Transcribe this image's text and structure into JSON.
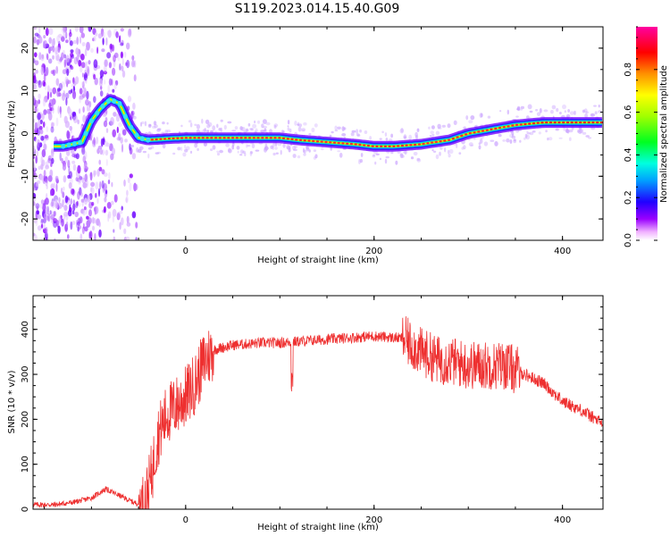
{
  "title": "S119.2023.014.15.40.G09",
  "chart_data": [
    {
      "type": "heatmap",
      "xlabel": "Height of straight line (km)",
      "ylabel": "Frequency (Hz)",
      "xlim": [
        -162,
        443
      ],
      "ylim": [
        -25,
        25
      ],
      "x_ticks": [
        0,
        200,
        400
      ],
      "y_ticks": [
        -20,
        -10,
        0,
        10,
        20
      ],
      "ridge": {
        "x": [
          -130,
          -110,
          -100,
          -90,
          -80,
          -70,
          -60,
          -50,
          -40,
          -20,
          0,
          50,
          100,
          120,
          150,
          180,
          200,
          220,
          250,
          280,
          300,
          320,
          350,
          380,
          443
        ],
        "y": [
          -3,
          -2,
          3,
          6,
          8,
          7,
          2,
          -1,
          -1.5,
          -1.2,
          -1,
          -1,
          -1,
          -1.5,
          -2,
          -2.5,
          -3,
          -3,
          -2.5,
          -1.5,
          0,
          0.8,
          2,
          2.6,
          2.6
        ]
      },
      "colorbar": {
        "label": "Normalized spectral amplitude",
        "ticks": [
          0.0,
          0.2,
          0.4,
          0.6,
          0.8
        ],
        "range": [
          0,
          1
        ],
        "colors": [
          "#ffffff",
          "#f0a0ff",
          "#8a00ff",
          "#0000ff",
          "#00e0ff",
          "#00ff40",
          "#a0ff00",
          "#ffff00",
          "#ff8000",
          "#ff0000",
          "#ff00a0"
        ]
      }
    },
    {
      "type": "line",
      "xlabel": "Height of straight line (km)",
      "ylabel": "SNR (10 * v/v)",
      "xlim": [
        -162,
        443
      ],
      "ylim": [
        0,
        475
      ],
      "x_ticks": [
        0,
        200,
        400
      ],
      "y_ticks": [
        0,
        100,
        200,
        300,
        400
      ],
      "color": "#ee3030",
      "trend": {
        "x": [
          -162,
          -140,
          -120,
          -100,
          -85,
          -70,
          -55,
          -45,
          -40,
          -35,
          -30,
          -20,
          -10,
          0,
          10,
          20,
          30,
          50,
          80,
          100,
          150,
          200,
          230,
          250,
          270,
          280,
          300,
          320,
          340,
          360,
          380,
          400,
          420,
          443
        ],
        "y": [
          10,
          10,
          15,
          25,
          45,
          30,
          15,
          10,
          40,
          90,
          160,
          210,
          230,
          250,
          280,
          330,
          355,
          365,
          370,
          370,
          378,
          385,
          380,
          350,
          330,
          330,
          320,
          320,
          320,
          300,
          280,
          240,
          220,
          190
        ]
      }
    }
  ]
}
